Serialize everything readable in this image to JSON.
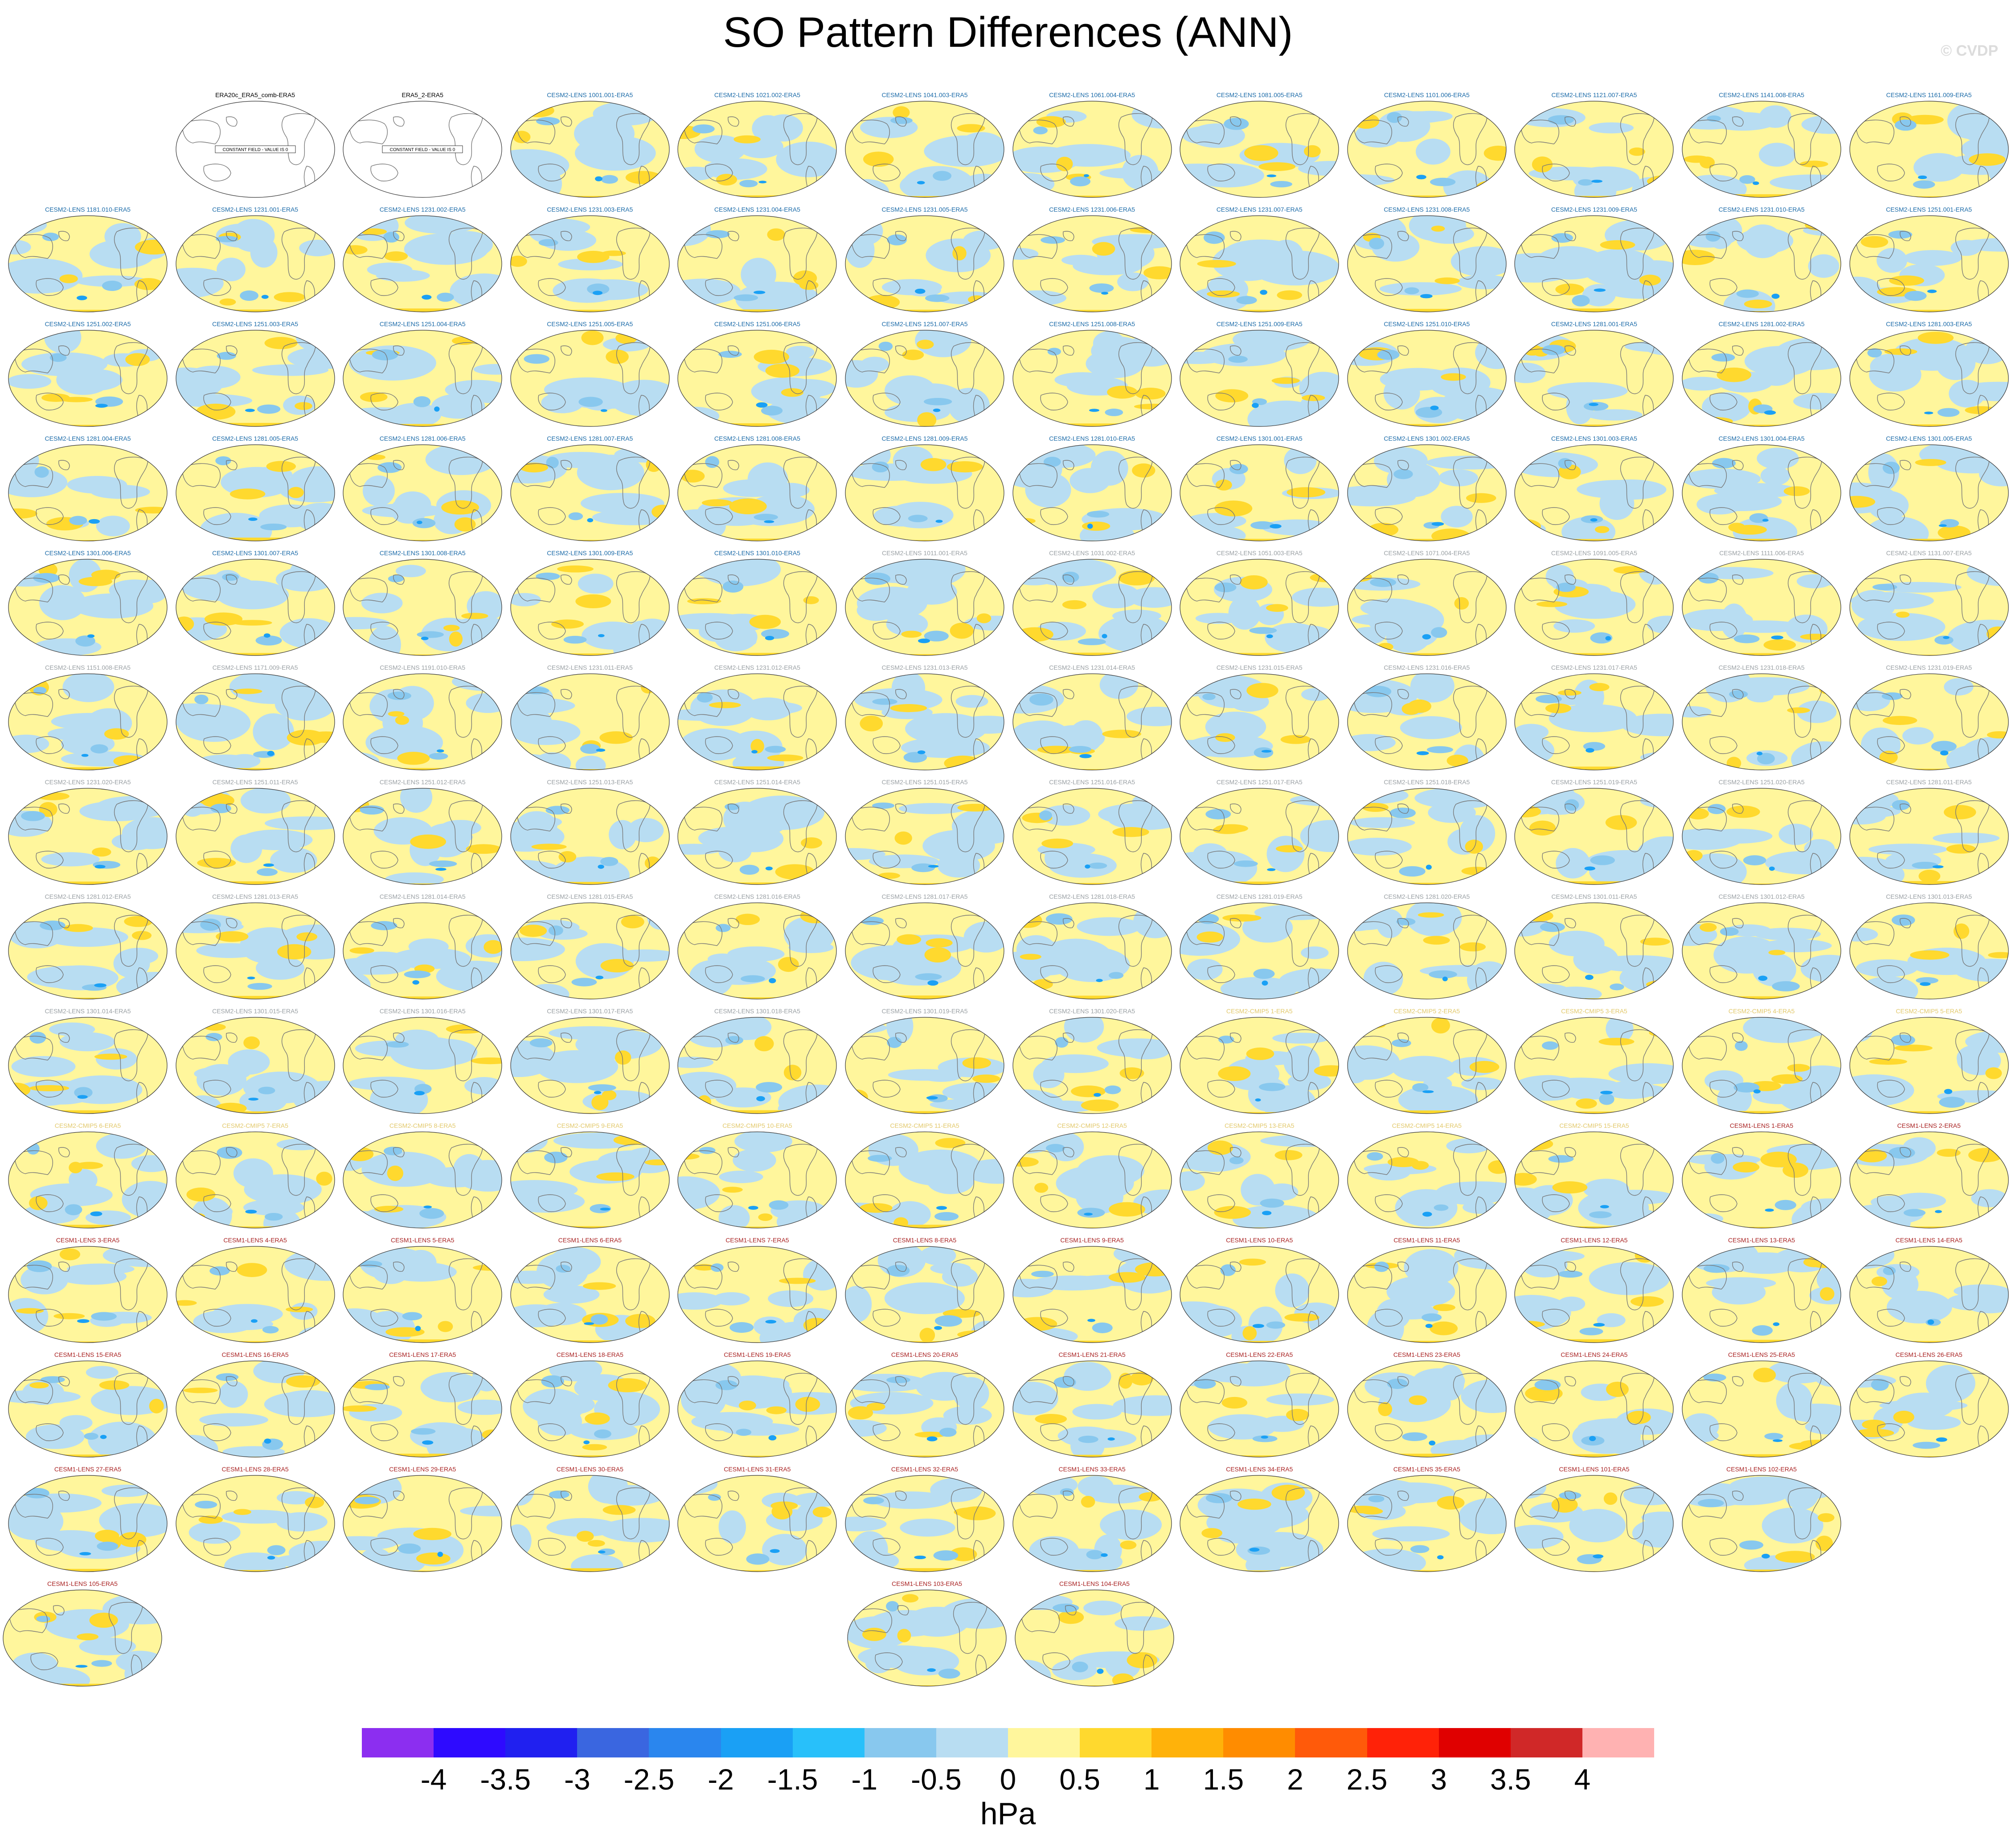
{
  "title": "SO Pattern Differences (ANN)",
  "credit": "© CVDP",
  "units": "hPa",
  "colorbar": {
    "labels": [
      "-4",
      "-3.5",
      "-3",
      "-2.5",
      "-2",
      "-1.5",
      "-1",
      "-0.5",
      "0",
      "0.5",
      "1",
      "1.5",
      "2",
      "2.5",
      "3",
      "3.5",
      "4"
    ],
    "colors": [
      "#8c2ef0",
      "#2e0aff",
      "#2020f0",
      "#3a66e0",
      "#2a86ee",
      "#1aa0f5",
      "#28c0fa",
      "#88c8ee",
      "#b8ddf2",
      "#fff69c",
      "#ffd92e",
      "#ffb20a",
      "#ff8c00",
      "#ff5a0a",
      "#ff2208",
      "#e00000",
      "#d02828",
      "#ffb2b2"
    ]
  },
  "title_colors": {
    "obs": "#000000",
    "cesm2": "#1a6aa8",
    "cesm2_grey": "#9aa0a4",
    "cmip5": "#e2c86a",
    "cesm1": "#a82020"
  },
  "panels": [
    {
      "title": "ERA20c_ERA5_comb-ERA5",
      "kind": "obs",
      "empty_label": "CONSTANT FIELD - VALUE IS 0"
    },
    {
      "title": "ERA5_2-ERA5",
      "kind": "obs",
      "empty_label": "CONSTANT FIELD - VALUE IS 0"
    },
    {
      "title": "CESM2-LENS 1001.001-ERA5",
      "kind": "cesm2"
    },
    {
      "title": "CESM2-LENS 1021.002-ERA5",
      "kind": "cesm2"
    },
    {
      "title": "CESM2-LENS 1041.003-ERA5",
      "kind": "cesm2"
    },
    {
      "title": "CESM2-LENS 1061.004-ERA5",
      "kind": "cesm2"
    },
    {
      "title": "CESM2-LENS 1081.005-ERA5",
      "kind": "cesm2"
    },
    {
      "title": "CESM2-LENS 1101.006-ERA5",
      "kind": "cesm2"
    },
    {
      "title": "CESM2-LENS 1121.007-ERA5",
      "kind": "cesm2"
    },
    {
      "title": "CESM2-LENS 1141.008-ERA5",
      "kind": "cesm2"
    },
    {
      "title": "CESM2-LENS 1161.009-ERA5",
      "kind": "cesm2"
    },
    {
      "title": "CESM2-LENS 1181.010-ERA5",
      "kind": "cesm2"
    },
    {
      "title": "CESM2-LENS 1231.001-ERA5",
      "kind": "cesm2"
    },
    {
      "title": "CESM2-LENS 1231.002-ERA5",
      "kind": "cesm2"
    },
    {
      "title": "CESM2-LENS 1231.003-ERA5",
      "kind": "cesm2"
    },
    {
      "title": "CESM2-LENS 1231.004-ERA5",
      "kind": "cesm2"
    },
    {
      "title": "CESM2-LENS 1231.005-ERA5",
      "kind": "cesm2"
    },
    {
      "title": "CESM2-LENS 1231.006-ERA5",
      "kind": "cesm2"
    },
    {
      "title": "CESM2-LENS 1231.007-ERA5",
      "kind": "cesm2"
    },
    {
      "title": "CESM2-LENS 1231.008-ERA5",
      "kind": "cesm2"
    },
    {
      "title": "CESM2-LENS 1231.009-ERA5",
      "kind": "cesm2"
    },
    {
      "title": "CESM2-LENS 1231.010-ERA5",
      "kind": "cesm2"
    },
    {
      "title": "CESM2-LENS 1251.001-ERA5",
      "kind": "cesm2"
    },
    {
      "title": "CESM2-LENS 1251.002-ERA5",
      "kind": "cesm2"
    },
    {
      "title": "CESM2-LENS 1251.003-ERA5",
      "kind": "cesm2"
    },
    {
      "title": "CESM2-LENS 1251.004-ERA5",
      "kind": "cesm2"
    },
    {
      "title": "CESM2-LENS 1251.005-ERA5",
      "kind": "cesm2"
    },
    {
      "title": "CESM2-LENS 1251.006-ERA5",
      "kind": "cesm2"
    },
    {
      "title": "CESM2-LENS 1251.007-ERA5",
      "kind": "cesm2"
    },
    {
      "title": "CESM2-LENS 1251.008-ERA5",
      "kind": "cesm2"
    },
    {
      "title": "CESM2-LENS 1251.009-ERA5",
      "kind": "cesm2"
    },
    {
      "title": "CESM2-LENS 1251.010-ERA5",
      "kind": "cesm2"
    },
    {
      "title": "CESM2-LENS 1281.001-ERA5",
      "kind": "cesm2"
    },
    {
      "title": "CESM2-LENS 1281.002-ERA5",
      "kind": "cesm2"
    },
    {
      "title": "CESM2-LENS 1281.003-ERA5",
      "kind": "cesm2"
    },
    {
      "title": "CESM2-LENS 1281.004-ERA5",
      "kind": "cesm2"
    },
    {
      "title": "CESM2-LENS 1281.005-ERA5",
      "kind": "cesm2"
    },
    {
      "title": "CESM2-LENS 1281.006-ERA5",
      "kind": "cesm2"
    },
    {
      "title": "CESM2-LENS 1281.007-ERA5",
      "kind": "cesm2"
    },
    {
      "title": "CESM2-LENS 1281.008-ERA5",
      "kind": "cesm2"
    },
    {
      "title": "CESM2-LENS 1281.009-ERA5",
      "kind": "cesm2"
    },
    {
      "title": "CESM2-LENS 1281.010-ERA5",
      "kind": "cesm2"
    },
    {
      "title": "CESM2-LENS 1301.001-ERA5",
      "kind": "cesm2"
    },
    {
      "title": "CESM2-LENS 1301.002-ERA5",
      "kind": "cesm2"
    },
    {
      "title": "CESM2-LENS 1301.003-ERA5",
      "kind": "cesm2"
    },
    {
      "title": "CESM2-LENS 1301.004-ERA5",
      "kind": "cesm2"
    },
    {
      "title": "CESM2-LENS 1301.005-ERA5",
      "kind": "cesm2"
    },
    {
      "title": "CESM2-LENS 1301.006-ERA5",
      "kind": "cesm2"
    },
    {
      "title": "CESM2-LENS 1301.007-ERA5",
      "kind": "cesm2"
    },
    {
      "title": "CESM2-LENS 1301.008-ERA5",
      "kind": "cesm2"
    },
    {
      "title": "CESM2-LENS 1301.009-ERA5",
      "kind": "cesm2"
    },
    {
      "title": "CESM2-LENS 1301.010-ERA5",
      "kind": "cesm2"
    },
    {
      "title": "CESM2-LENS 1011.001-ERA5",
      "kind": "cesm2_grey"
    },
    {
      "title": "CESM2-LENS 1031.002-ERA5",
      "kind": "cesm2_grey"
    },
    {
      "title": "CESM2-LENS 1051.003-ERA5",
      "kind": "cesm2_grey"
    },
    {
      "title": "CESM2-LENS 1071.004-ERA5",
      "kind": "cesm2_grey"
    },
    {
      "title": "CESM2-LENS 1091.005-ERA5",
      "kind": "cesm2_grey"
    },
    {
      "title": "CESM2-LENS 1111.006-ERA5",
      "kind": "cesm2_grey"
    },
    {
      "title": "CESM2-LENS 1131.007-ERA5",
      "kind": "cesm2_grey"
    },
    {
      "title": "CESM2-LENS 1151.008-ERA5",
      "kind": "cesm2_grey"
    },
    {
      "title": "CESM2-LENS 1171.009-ERA5",
      "kind": "cesm2_grey"
    },
    {
      "title": "CESM2-LENS 1191.010-ERA5",
      "kind": "cesm2_grey"
    },
    {
      "title": "CESM2-LENS 1231.011-ERA5",
      "kind": "cesm2_grey"
    },
    {
      "title": "CESM2-LENS 1231.012-ERA5",
      "kind": "cesm2_grey"
    },
    {
      "title": "CESM2-LENS 1231.013-ERA5",
      "kind": "cesm2_grey"
    },
    {
      "title": "CESM2-LENS 1231.014-ERA5",
      "kind": "cesm2_grey"
    },
    {
      "title": "CESM2-LENS 1231.015-ERA5",
      "kind": "cesm2_grey"
    },
    {
      "title": "CESM2-LENS 1231.016-ERA5",
      "kind": "cesm2_grey"
    },
    {
      "title": "CESM2-LENS 1231.017-ERA5",
      "kind": "cesm2_grey"
    },
    {
      "title": "CESM2-LENS 1231.018-ERA5",
      "kind": "cesm2_grey"
    },
    {
      "title": "CESM2-LENS 1231.019-ERA5",
      "kind": "cesm2_grey"
    },
    {
      "title": "CESM2-LENS 1231.020-ERA5",
      "kind": "cesm2_grey"
    },
    {
      "title": "CESM2-LENS 1251.011-ERA5",
      "kind": "cesm2_grey"
    },
    {
      "title": "CESM2-LENS 1251.012-ERA5",
      "kind": "cesm2_grey"
    },
    {
      "title": "CESM2-LENS 1251.013-ERA5",
      "kind": "cesm2_grey"
    },
    {
      "title": "CESM2-LENS 1251.014-ERA5",
      "kind": "cesm2_grey"
    },
    {
      "title": "CESM2-LENS 1251.015-ERA5",
      "kind": "cesm2_grey"
    },
    {
      "title": "CESM2-LENS 1251.016-ERA5",
      "kind": "cesm2_grey"
    },
    {
      "title": "CESM2-LENS 1251.017-ERA5",
      "kind": "cesm2_grey"
    },
    {
      "title": "CESM2-LENS 1251.018-ERA5",
      "kind": "cesm2_grey"
    },
    {
      "title": "CESM2-LENS 1251.019-ERA5",
      "kind": "cesm2_grey"
    },
    {
      "title": "CESM2-LENS 1251.020-ERA5",
      "kind": "cesm2_grey"
    },
    {
      "title": "CESM2-LENS 1281.011-ERA5",
      "kind": "cesm2_grey"
    },
    {
      "title": "CESM2-LENS 1281.012-ERA5",
      "kind": "cesm2_grey"
    },
    {
      "title": "CESM2-LENS 1281.013-ERA5",
      "kind": "cesm2_grey"
    },
    {
      "title": "CESM2-LENS 1281.014-ERA5",
      "kind": "cesm2_grey"
    },
    {
      "title": "CESM2-LENS 1281.015-ERA5",
      "kind": "cesm2_grey"
    },
    {
      "title": "CESM2-LENS 1281.016-ERA5",
      "kind": "cesm2_grey"
    },
    {
      "title": "CESM2-LENS 1281.017-ERA5",
      "kind": "cesm2_grey"
    },
    {
      "title": "CESM2-LENS 1281.018-ERA5",
      "kind": "cesm2_grey"
    },
    {
      "title": "CESM2-LENS 1281.019-ERA5",
      "kind": "cesm2_grey"
    },
    {
      "title": "CESM2-LENS 1281.020-ERA5",
      "kind": "cesm2_grey"
    },
    {
      "title": "CESM2-LENS 1301.011-ERA5",
      "kind": "cesm2_grey"
    },
    {
      "title": "CESM2-LENS 1301.012-ERA5",
      "kind": "cesm2_grey"
    },
    {
      "title": "CESM2-LENS 1301.013-ERA5",
      "kind": "cesm2_grey"
    },
    {
      "title": "CESM2-LENS 1301.014-ERA5",
      "kind": "cesm2_grey"
    },
    {
      "title": "CESM2-LENS 1301.015-ERA5",
      "kind": "cesm2_grey"
    },
    {
      "title": "CESM2-LENS 1301.016-ERA5",
      "kind": "cesm2_grey"
    },
    {
      "title": "CESM2-LENS 1301.017-ERA5",
      "kind": "cesm2_grey"
    },
    {
      "title": "CESM2-LENS 1301.018-ERA5",
      "kind": "cesm2_grey"
    },
    {
      "title": "CESM2-LENS 1301.019-ERA5",
      "kind": "cesm2_grey"
    },
    {
      "title": "CESM2-LENS 1301.020-ERA5",
      "kind": "cesm2_grey"
    },
    {
      "title": "CESM2-CMIP5 1-ERA5",
      "kind": "cmip5"
    },
    {
      "title": "CESM2-CMIP5 2-ERA5",
      "kind": "cmip5"
    },
    {
      "title": "CESM2-CMIP5 3-ERA5",
      "kind": "cmip5"
    },
    {
      "title": "CESM2-CMIP5 4-ERA5",
      "kind": "cmip5"
    },
    {
      "title": "CESM2-CMIP5 5-ERA5",
      "kind": "cmip5"
    },
    {
      "title": "CESM2-CMIP5 6-ERA5",
      "kind": "cmip5"
    },
    {
      "title": "CESM2-CMIP5 7-ERA5",
      "kind": "cmip5"
    },
    {
      "title": "CESM2-CMIP5 8-ERA5",
      "kind": "cmip5"
    },
    {
      "title": "CESM2-CMIP5 9-ERA5",
      "kind": "cmip5"
    },
    {
      "title": "CESM2-CMIP5 10-ERA5",
      "kind": "cmip5"
    },
    {
      "title": "CESM2-CMIP5 11-ERA5",
      "kind": "cmip5"
    },
    {
      "title": "CESM2-CMIP5 12-ERA5",
      "kind": "cmip5"
    },
    {
      "title": "CESM2-CMIP5 13-ERA5",
      "kind": "cmip5"
    },
    {
      "title": "CESM2-CMIP5 14-ERA5",
      "kind": "cmip5"
    },
    {
      "title": "CESM2-CMIP5 15-ERA5",
      "kind": "cmip5"
    },
    {
      "title": "CESM1-LENS 1-ERA5",
      "kind": "cesm1"
    },
    {
      "title": "CESM1-LENS 2-ERA5",
      "kind": "cesm1"
    },
    {
      "title": "CESM1-LENS 3-ERA5",
      "kind": "cesm1"
    },
    {
      "title": "CESM1-LENS 4-ERA5",
      "kind": "cesm1"
    },
    {
      "title": "CESM1-LENS 5-ERA5",
      "kind": "cesm1"
    },
    {
      "title": "CESM1-LENS 6-ERA5",
      "kind": "cesm1"
    },
    {
      "title": "CESM1-LENS 7-ERA5",
      "kind": "cesm1"
    },
    {
      "title": "CESM1-LENS 8-ERA5",
      "kind": "cesm1"
    },
    {
      "title": "CESM1-LENS 9-ERA5",
      "kind": "cesm1"
    },
    {
      "title": "CESM1-LENS 10-ERA5",
      "kind": "cesm1"
    },
    {
      "title": "CESM1-LENS 11-ERA5",
      "kind": "cesm1"
    },
    {
      "title": "CESM1-LENS 12-ERA5",
      "kind": "cesm1"
    },
    {
      "title": "CESM1-LENS 13-ERA5",
      "kind": "cesm1"
    },
    {
      "title": "CESM1-LENS 14-ERA5",
      "kind": "cesm1"
    },
    {
      "title": "CESM1-LENS 15-ERA5",
      "kind": "cesm1"
    },
    {
      "title": "CESM1-LENS 16-ERA5",
      "kind": "cesm1"
    },
    {
      "title": "CESM1-LENS 17-ERA5",
      "kind": "cesm1"
    },
    {
      "title": "CESM1-LENS 18-ERA5",
      "kind": "cesm1"
    },
    {
      "title": "CESM1-LENS 19-ERA5",
      "kind": "cesm1"
    },
    {
      "title": "CESM1-LENS 20-ERA5",
      "kind": "cesm1"
    },
    {
      "title": "CESM1-LENS 21-ERA5",
      "kind": "cesm1"
    },
    {
      "title": "CESM1-LENS 22-ERA5",
      "kind": "cesm1"
    },
    {
      "title": "CESM1-LENS 23-ERA5",
      "kind": "cesm1"
    },
    {
      "title": "CESM1-LENS 24-ERA5",
      "kind": "cesm1"
    },
    {
      "title": "CESM1-LENS 25-ERA5",
      "kind": "cesm1"
    },
    {
      "title": "CESM1-LENS 26-ERA5",
      "kind": "cesm1"
    },
    {
      "title": "CESM1-LENS 27-ERA5",
      "kind": "cesm1"
    },
    {
      "title": "CESM1-LENS 28-ERA5",
      "kind": "cesm1"
    },
    {
      "title": "CESM1-LENS 29-ERA5",
      "kind": "cesm1"
    },
    {
      "title": "CESM1-LENS 30-ERA5",
      "kind": "cesm1"
    },
    {
      "title": "CESM1-LENS 31-ERA5",
      "kind": "cesm1"
    },
    {
      "title": "CESM1-LENS 32-ERA5",
      "kind": "cesm1"
    },
    {
      "title": "CESM1-LENS 33-ERA5",
      "kind": "cesm1"
    },
    {
      "title": "CESM1-LENS 34-ERA5",
      "kind": "cesm1"
    },
    {
      "title": "CESM1-LENS 35-ERA5",
      "kind": "cesm1"
    },
    {
      "title": "CESM1-LENS 101-ERA5",
      "kind": "cesm1"
    },
    {
      "title": "CESM1-LENS 102-ERA5",
      "kind": "cesm1"
    },
    {
      "title": "CESM1-LENS 103-ERA5",
      "kind": "cesm1"
    },
    {
      "title": "CESM1-LENS 104-ERA5",
      "kind": "cesm1"
    },
    {
      "title": "CESM1-LENS 105-ERA5",
      "kind": "cesm1"
    }
  ]
}
